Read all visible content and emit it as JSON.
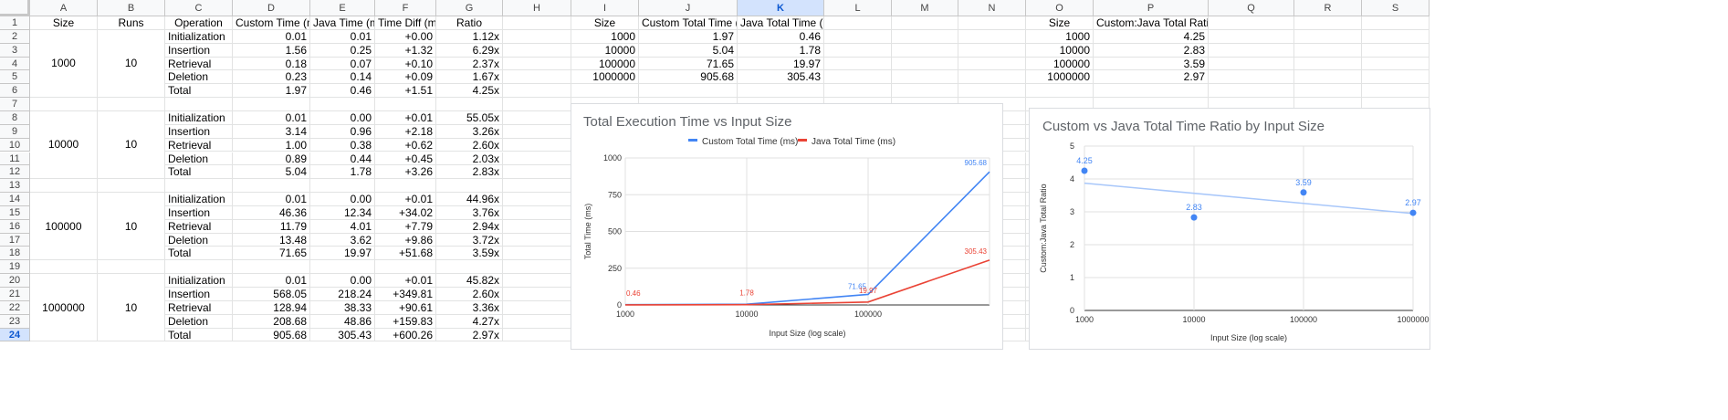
{
  "columns": [
    "A",
    "B",
    "C",
    "D",
    "E",
    "F",
    "G",
    "H",
    "I",
    "J",
    "K",
    "L",
    "M",
    "N",
    "O",
    "P",
    "Q",
    "R",
    "S"
  ],
  "selected_column": "K",
  "selected_row": "24",
  "rows": [
    "1",
    "2",
    "3",
    "4",
    "5",
    "6",
    "7",
    "8",
    "9",
    "10",
    "11",
    "12",
    "13",
    "14",
    "15",
    "16",
    "17",
    "18",
    "19",
    "20",
    "21",
    "22",
    "23",
    "24"
  ],
  "table_headers": [
    "Size",
    "Runs",
    "Operation",
    "Custom Time (ms)",
    "Java Time (ms)",
    "Time Diff (ms)",
    "Ratio"
  ],
  "groups": [
    {
      "size": "1000",
      "runs": "10",
      "ops": [
        [
          "Initialization",
          "0.01",
          "0.01",
          "+0.00",
          "1.12x"
        ],
        [
          "Insertion",
          "1.56",
          "0.25",
          "+1.32",
          "6.29x"
        ],
        [
          "Retrieval",
          "0.18",
          "0.07",
          "+0.10",
          "2.37x"
        ],
        [
          "Deletion",
          "0.23",
          "0.14",
          "+0.09",
          "1.67x"
        ],
        [
          "Total",
          "1.97",
          "0.46",
          "+1.51",
          "4.25x"
        ]
      ]
    },
    {
      "size": "10000",
      "runs": "10",
      "ops": [
        [
          "Initialization",
          "0.01",
          "0.00",
          "+0.01",
          "55.05x"
        ],
        [
          "Insertion",
          "3.14",
          "0.96",
          "+2.18",
          "3.26x"
        ],
        [
          "Retrieval",
          "1.00",
          "0.38",
          "+0.62",
          "2.60x"
        ],
        [
          "Deletion",
          "0.89",
          "0.44",
          "+0.45",
          "2.03x"
        ],
        [
          "Total",
          "5.04",
          "1.78",
          "+3.26",
          "2.83x"
        ]
      ]
    },
    {
      "size": "100000",
      "runs": "10",
      "ops": [
        [
          "Initialization",
          "0.01",
          "0.00",
          "+0.01",
          "44.96x"
        ],
        [
          "Insertion",
          "46.36",
          "12.34",
          "+34.02",
          "3.76x"
        ],
        [
          "Retrieval",
          "11.79",
          "4.01",
          "+7.79",
          "2.94x"
        ],
        [
          "Deletion",
          "13.48",
          "3.62",
          "+9.86",
          "3.72x"
        ],
        [
          "Total",
          "71.65",
          "19.97",
          "+51.68",
          "3.59x"
        ]
      ]
    },
    {
      "size": "1000000",
      "runs": "10",
      "ops": [
        [
          "Initialization",
          "0.01",
          "0.00",
          "+0.01",
          "45.82x"
        ],
        [
          "Insertion",
          "568.05",
          "218.24",
          "+349.81",
          "2.60x"
        ],
        [
          "Retrieval",
          "128.94",
          "38.33",
          "+90.61",
          "3.36x"
        ],
        [
          "Deletion",
          "208.68",
          "48.86",
          "+159.83",
          "4.27x"
        ],
        [
          "Total",
          "905.68",
          "305.43",
          "+600.26",
          "2.97x"
        ]
      ]
    }
  ],
  "summary_headers": [
    "Size",
    "Custom Total Time (ms)",
    "Java Total Time (ms)"
  ],
  "summary_rows": [
    [
      "1000",
      "1.97",
      "0.46"
    ],
    [
      "10000",
      "5.04",
      "1.78"
    ],
    [
      "100000",
      "71.65",
      "19.97"
    ],
    [
      "1000000",
      "905.68",
      "305.43"
    ]
  ],
  "ratio_headers": [
    "Size",
    "Custom:Java Total Ratio (x)"
  ],
  "ratio_rows": [
    [
      "1000",
      "4.25"
    ],
    [
      "10000",
      "2.83"
    ],
    [
      "100000",
      "3.59"
    ],
    [
      "1000000",
      "2.97"
    ]
  ],
  "chart_data": [
    {
      "type": "line",
      "title": "Total Execution Time vs Input Size",
      "xlabel": "Input Size (log scale)",
      "ylabel": "Total Time (ms)",
      "x": [
        1000,
        10000,
        100000,
        1000000
      ],
      "x_scale": "log",
      "ylim": [
        0,
        1000
      ],
      "yticks": [
        0,
        250,
        500,
        750,
        1000
      ],
      "legend_position": "top",
      "series": [
        {
          "name": "Custom Total Time (ms)",
          "values": [
            1.97,
            5.04,
            71.65,
            905.68
          ],
          "color": "#4285f4",
          "point_labels": [
            "",
            "",
            "71.65",
            "905.68"
          ]
        },
        {
          "name": "Java Total Time (ms)",
          "values": [
            0.46,
            1.78,
            19.97,
            305.43
          ],
          "color": "#ea4335",
          "point_labels": [
            "0.46",
            "1.78",
            "19.97",
            "305.43"
          ]
        }
      ]
    },
    {
      "type": "scatter",
      "title": "Custom vs Java Total Time Ratio by Input Size",
      "xlabel": "Input Size (log scale)",
      "ylabel": "Custom:Java Total Ratio",
      "x": [
        1000,
        10000,
        100000,
        1000000
      ],
      "x_scale": "log",
      "ylim": [
        0,
        5
      ],
      "yticks": [
        0,
        1,
        2,
        3,
        4,
        5
      ],
      "trendline": true,
      "series": [
        {
          "values": [
            4.25,
            2.83,
            3.59,
            2.97
          ],
          "color": "#4285f4",
          "point_labels": [
            "4.25",
            "2.83",
            "3.59",
            "2.97"
          ]
        }
      ]
    }
  ]
}
